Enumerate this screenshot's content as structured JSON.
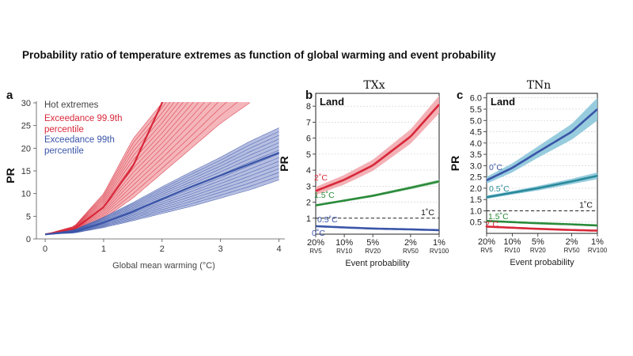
{
  "figure_title": "Probability ratio of temperature extremes as function of global warming and event probability",
  "colors": {
    "red": "#d8283a",
    "red_fill": "#f2a9ae",
    "blue": "#3a55a8",
    "blue_fill": "#a9b3dc",
    "green": "#2a8a3a",
    "teal": "#2a8a9a",
    "cyan_fill": "#8cc6da",
    "dark": "#1a1a1a"
  },
  "chart_data": [
    {
      "panel": "a",
      "type": "line",
      "xlabel": "Global mean warming (°C)",
      "ylabel": "PR",
      "xlim": [
        -0.15,
        4.1
      ],
      "ylim": [
        0,
        30
      ],
      "xticks": [
        "0",
        "1",
        "2",
        "3",
        "4"
      ],
      "yticks": [
        "0",
        "5",
        "10",
        "15",
        "20",
        "25",
        "30"
      ],
      "legend_title": "Hot extremes",
      "series": [
        {
          "name": "Exceedance 99.9th percentile",
          "color": "red",
          "x": [
            0,
            0.5,
            1.0,
            1.5,
            2.0,
            2.5,
            3.0,
            3.5
          ],
          "y_median": [
            1,
            2.2,
            7,
            16,
            30,
            null,
            null,
            null
          ],
          "y_lower": [
            1,
            1.8,
            4.5,
            9,
            14.5,
            20,
            25.5,
            30
          ],
          "y_upper": [
            1,
            2.8,
            10,
            22,
            30,
            null,
            null,
            null
          ]
        },
        {
          "name": "Exceedance 99th percentile",
          "color": "blue",
          "x": [
            0,
            0.5,
            1.0,
            1.5,
            2.0,
            2.5,
            3.0,
            3.5,
            4.0
          ],
          "y_median": [
            1,
            1.6,
            3.6,
            6,
            8.8,
            11.5,
            14,
            16.5,
            19
          ],
          "y_lower": [
            1,
            1.3,
            2.5,
            4,
            5.6,
            7.2,
            9,
            10.8,
            13
          ],
          "y_upper": [
            1,
            2,
            4.8,
            8,
            11.5,
            14.8,
            18,
            21.5,
            24.5
          ]
        }
      ]
    },
    {
      "panel": "b",
      "type": "line",
      "title": "TXx",
      "region_label": "Land",
      "xlabel": "Event probability",
      "ylabel": "PR",
      "ylim": [
        0,
        8.8
      ],
      "yticks": [
        "1",
        "2",
        "3",
        "4",
        "5",
        "6",
        "7",
        "8"
      ],
      "xticks": [
        "20%",
        "10%",
        "5%",
        "2%",
        "1%"
      ],
      "xticks_sub": [
        "RV5",
        "RV10",
        "RV20",
        "RV50",
        "RV100"
      ],
      "reference_line": {
        "y": 1,
        "label": "1˚C"
      },
      "x_probability_percent": [
        20,
        10,
        5,
        2,
        1
      ],
      "series": [
        {
          "name": "2˚C",
          "color": "red",
          "values": [
            2.7,
            3.4,
            4.3,
            6.1,
            8.1
          ],
          "band": [
            0.25,
            0.3,
            0.35,
            0.45,
            0.55
          ]
        },
        {
          "name": "1.5˚C",
          "color": "green",
          "values": [
            1.8,
            2.1,
            2.4,
            2.9,
            3.3
          ],
          "band": [
            0.05,
            0.07,
            0.08,
            0.1,
            0.12
          ]
        },
        {
          "name": "0.5˚C",
          "color": "blue",
          "values": [
            0.5,
            0.42,
            0.35,
            0.3,
            0.25
          ],
          "band": [
            0.04,
            0.04,
            0.04,
            0.04,
            0.04
          ]
        },
        {
          "name": "0˚C",
          "color": "blue",
          "values": [],
          "band": []
        }
      ]
    },
    {
      "panel": "c",
      "type": "line",
      "title": "TNn",
      "region_label": "Land",
      "xlabel": "Event probability",
      "ylabel": "PR",
      "ylim": [
        0,
        6.2
      ],
      "yticks": [
        "0.5",
        "1.0",
        "1.5",
        "2.0",
        "2.5",
        "3.0",
        "3.5",
        "4.0",
        "4.5",
        "5.0",
        "5.5",
        "6.0"
      ],
      "xticks": [
        "20%",
        "10%",
        "5%",
        "2%",
        "1%"
      ],
      "xticks_sub": [
        "RV5",
        "RV10",
        "RV20",
        "RV50",
        "RV100"
      ],
      "reference_line": {
        "y": 1,
        "label": "1˚C"
      },
      "x_probability_percent": [
        20,
        10,
        5,
        2,
        1
      ],
      "series": [
        {
          "name": "0˚C",
          "color": "blue",
          "values": [
            2.35,
            2.9,
            3.6,
            4.5,
            5.5
          ],
          "band": [
            0.15,
            0.2,
            0.25,
            0.35,
            0.5
          ]
        },
        {
          "name": "0.5˚C",
          "color": "teal",
          "values": [
            1.6,
            1.8,
            2.0,
            2.3,
            2.55
          ],
          "band": [
            0.07,
            0.08,
            0.1,
            0.12,
            0.15
          ]
        },
        {
          "name": "1.5˚C",
          "color": "green",
          "values": [
            0.55,
            0.5,
            0.45,
            0.4,
            0.35
          ],
          "band": [
            0.03,
            0.03,
            0.03,
            0.03,
            0.03
          ]
        },
        {
          "name": "2˚C",
          "color": "red",
          "values": [
            0.3,
            0.25,
            0.2,
            0.15,
            0.12
          ],
          "band": [
            0.02,
            0.02,
            0.02,
            0.02,
            0.02
          ]
        }
      ]
    }
  ]
}
